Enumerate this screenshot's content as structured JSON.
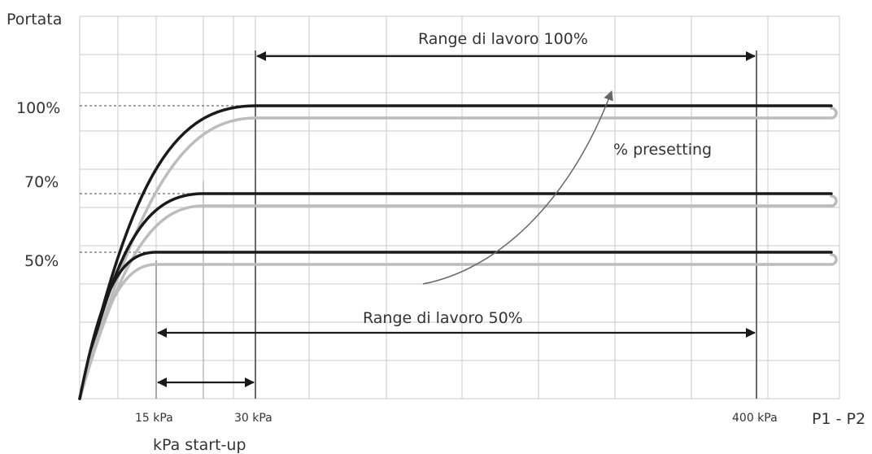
{
  "chart_data": {
    "type": "line",
    "title": "",
    "ylabel": "Portata",
    "xlabel": "P1 - P2",
    "grid": true,
    "y_ticks": [
      "100%",
      "70%",
      "50%"
    ],
    "x_ticks": [
      "15 kPa",
      "30 kPa",
      "400 kPa"
    ],
    "x_secondary_label": "kPa start-up",
    "series": [
      {
        "level": 100,
        "start_up_kpa": 30,
        "colors": {
          "main": "#1a1a1a",
          "shadow": "#bcbcbc"
        }
      },
      {
        "level": 70,
        "start_up_kpa": 22,
        "colors": {
          "main": "#1a1a1a",
          "shadow": "#bcbcbc"
        }
      },
      {
        "level": 50,
        "start_up_kpa": 15,
        "colors": {
          "main": "#1a1a1a",
          "shadow": "#bcbcbc"
        }
      }
    ],
    "annotations": {
      "range_100": {
        "label": "Range di lavoro 100%",
        "from_kpa": 30,
        "to_kpa": 400
      },
      "range_50": {
        "label": "Range di lavoro 50%",
        "from_kpa": 15,
        "to_kpa": 400
      },
      "start_up": {
        "from_kpa": 15,
        "to_kpa": 30
      },
      "presetting": {
        "label": "% presetting"
      }
    },
    "colors": {
      "grid": "#c8c8c8",
      "axis": "#555555",
      "curve": "#1a1a1a",
      "shadow": "#bcbcbc",
      "arrow": "#1a1a1a",
      "presetting_arrow": "#666666"
    }
  }
}
